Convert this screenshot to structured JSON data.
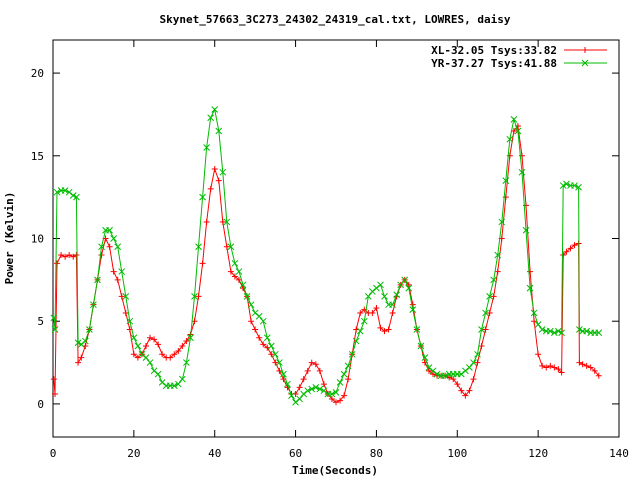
{
  "chart_data": {
    "type": "line",
    "title": "Skynet_57663_3C273_24302_24319_cal.txt, LOWRES, daisy",
    "xlabel": "Time(Seconds)",
    "ylabel": "Power (Kelvin)",
    "xlim": [
      0,
      140
    ],
    "ylim": [
      -2,
      22
    ],
    "xticks": [
      0,
      20,
      40,
      60,
      80,
      100,
      120,
      140
    ],
    "yticks": [
      0,
      5,
      10,
      15,
      20
    ],
    "grid": false,
    "legend_position": "top-right",
    "series": [
      {
        "name": "XL-32.05 Tsys:33.82",
        "color": "#ff0000",
        "marker": "plus",
        "x": [
          0.2,
          0.5,
          1,
          2,
          3,
          4,
          5,
          5.8,
          6.2,
          7,
          8,
          9,
          10,
          11,
          12,
          13,
          14,
          15,
          16,
          17,
          18,
          19,
          20,
          21,
          22,
          23,
          24,
          25,
          26,
          27,
          28,
          29,
          30,
          31,
          32,
          33,
          34,
          35,
          36,
          37,
          38,
          39,
          40,
          41,
          42,
          43,
          44,
          45,
          46,
          47,
          48,
          49,
          50,
          51,
          52,
          53,
          54,
          55,
          56,
          57,
          58,
          59,
          60,
          61,
          62,
          63,
          64,
          65,
          66,
          67,
          68,
          69,
          70,
          71,
          72,
          73,
          74,
          75,
          76,
          77,
          78,
          79,
          80,
          81,
          82,
          83,
          84,
          85,
          86,
          87,
          88,
          89,
          90,
          91,
          92,
          93,
          94,
          95,
          96,
          97,
          98,
          99,
          100,
          101,
          102,
          103,
          104,
          105,
          106,
          107,
          108,
          109,
          110,
          111,
          112,
          113,
          114,
          115,
          116,
          117,
          118,
          119,
          120,
          121,
          122,
          123,
          124,
          125,
          125.8,
          126.2,
          127,
          128,
          129,
          130,
          130.2,
          131,
          132,
          133,
          134,
          135
        ],
        "y": [
          1.5,
          0.6,
          8.5,
          9.0,
          8.9,
          9.0,
          8.9,
          9.0,
          2.5,
          2.8,
          3.5,
          4.5,
          6.0,
          7.5,
          9.0,
          10.0,
          9.5,
          8.0,
          7.5,
          6.5,
          5.5,
          4.5,
          3.0,
          2.8,
          3.0,
          3.5,
          4.0,
          3.9,
          3.6,
          3.0,
          2.8,
          2.8,
          3.0,
          3.2,
          3.5,
          3.8,
          4.2,
          5.0,
          6.5,
          8.5,
          11.0,
          13.0,
          14.2,
          13.5,
          11.0,
          9.5,
          8.0,
          7.7,
          7.5,
          7.0,
          6.5,
          5.0,
          4.5,
          4.0,
          3.6,
          3.4,
          3.0,
          2.5,
          2.0,
          1.5,
          1.0,
          0.6,
          0.6,
          1.0,
          1.5,
          2.0,
          2.5,
          2.4,
          2.0,
          1.2,
          0.6,
          0.3,
          0.1,
          0.2,
          0.5,
          1.5,
          3.0,
          4.5,
          5.5,
          5.7,
          5.5,
          5.5,
          5.8,
          4.6,
          4.4,
          4.5,
          5.5,
          6.5,
          7.2,
          7.5,
          7.2,
          6.0,
          4.5,
          3.5,
          2.5,
          2.0,
          1.8,
          1.7,
          1.7,
          1.7,
          1.6,
          1.5,
          1.2,
          0.8,
          0.5,
          0.8,
          1.5,
          2.5,
          3.5,
          4.5,
          5.5,
          6.5,
          8.0,
          10.0,
          12.5,
          15.0,
          16.5,
          16.8,
          15.0,
          12.0,
          8.0,
          5.0,
          3.0,
          2.3,
          2.2,
          2.3,
          2.2,
          2.1,
          1.9,
          9.0,
          9.2,
          9.4,
          9.6,
          9.7,
          2.5,
          2.4,
          2.3,
          2.2,
          2.0,
          1.7
        ]
      },
      {
        "name": "YR-37.27 Tsys:41.88",
        "color": "#00bb00",
        "marker": "cross",
        "x": [
          0.2,
          0.5,
          1,
          2,
          3,
          4,
          5,
          5.8,
          6.2,
          7,
          8,
          9,
          10,
          11,
          12,
          13,
          14,
          15,
          16,
          17,
          18,
          19,
          20,
          21,
          22,
          23,
          24,
          25,
          26,
          27,
          28,
          29,
          30,
          31,
          32,
          33,
          34,
          35,
          36,
          37,
          38,
          39,
          40,
          41,
          42,
          43,
          44,
          45,
          46,
          47,
          48,
          49,
          50,
          51,
          52,
          53,
          54,
          55,
          56,
          57,
          58,
          59,
          60,
          61,
          62,
          63,
          64,
          65,
          66,
          67,
          68,
          69,
          70,
          71,
          72,
          73,
          74,
          75,
          76,
          77,
          78,
          79,
          80,
          81,
          82,
          83,
          84,
          85,
          86,
          87,
          88,
          89,
          90,
          91,
          92,
          93,
          94,
          95,
          96,
          97,
          98,
          99,
          100,
          101,
          102,
          103,
          104,
          105,
          106,
          107,
          108,
          109,
          110,
          111,
          112,
          113,
          114,
          115,
          116,
          117,
          118,
          119,
          120,
          121,
          122,
          123,
          124,
          125,
          125.8,
          126.2,
          127,
          128,
          129,
          130,
          130.2,
          131,
          132,
          133,
          134,
          135
        ],
        "y": [
          5.2,
          4.5,
          12.8,
          12.9,
          12.9,
          12.8,
          12.6,
          12.5,
          3.7,
          3.6,
          3.8,
          4.5,
          6.0,
          7.5,
          9.5,
          10.5,
          10.5,
          10.0,
          9.5,
          8.0,
          6.5,
          5.0,
          4.0,
          3.5,
          3.0,
          2.8,
          2.5,
          2.0,
          1.8,
          1.3,
          1.1,
          1.1,
          1.1,
          1.2,
          1.5,
          2.5,
          4.0,
          6.5,
          9.5,
          12.5,
          15.5,
          17.3,
          17.8,
          16.5,
          14.0,
          11.0,
          9.5,
          8.5,
          8.0,
          7.2,
          6.5,
          6.0,
          5.5,
          5.3,
          5.0,
          4.0,
          3.5,
          3.0,
          2.5,
          1.8,
          1.2,
          0.5,
          0.1,
          0.3,
          0.6,
          0.8,
          0.9,
          1.0,
          0.9,
          0.8,
          0.6,
          0.6,
          0.7,
          1.3,
          1.8,
          2.3,
          3.0,
          3.8,
          4.4,
          5.0,
          6.5,
          6.8,
          7.0,
          7.2,
          6.5,
          6.0,
          6.0,
          6.6,
          7.2,
          7.5,
          7.0,
          5.7,
          4.5,
          3.5,
          2.8,
          2.2,
          2.0,
          1.8,
          1.7,
          1.7,
          1.8,
          1.8,
          1.8,
          1.8,
          2.0,
          2.2,
          2.5,
          3.0,
          4.5,
          5.5,
          6.5,
          7.5,
          9.0,
          11.0,
          13.5,
          16.0,
          17.2,
          16.5,
          14.0,
          10.5,
          7.0,
          5.5,
          4.8,
          4.5,
          4.4,
          4.4,
          4.3,
          4.4,
          4.3,
          13.2,
          13.3,
          13.2,
          13.2,
          13.1,
          4.5,
          4.4,
          4.4,
          4.3,
          4.3,
          4.3
        ]
      }
    ]
  }
}
